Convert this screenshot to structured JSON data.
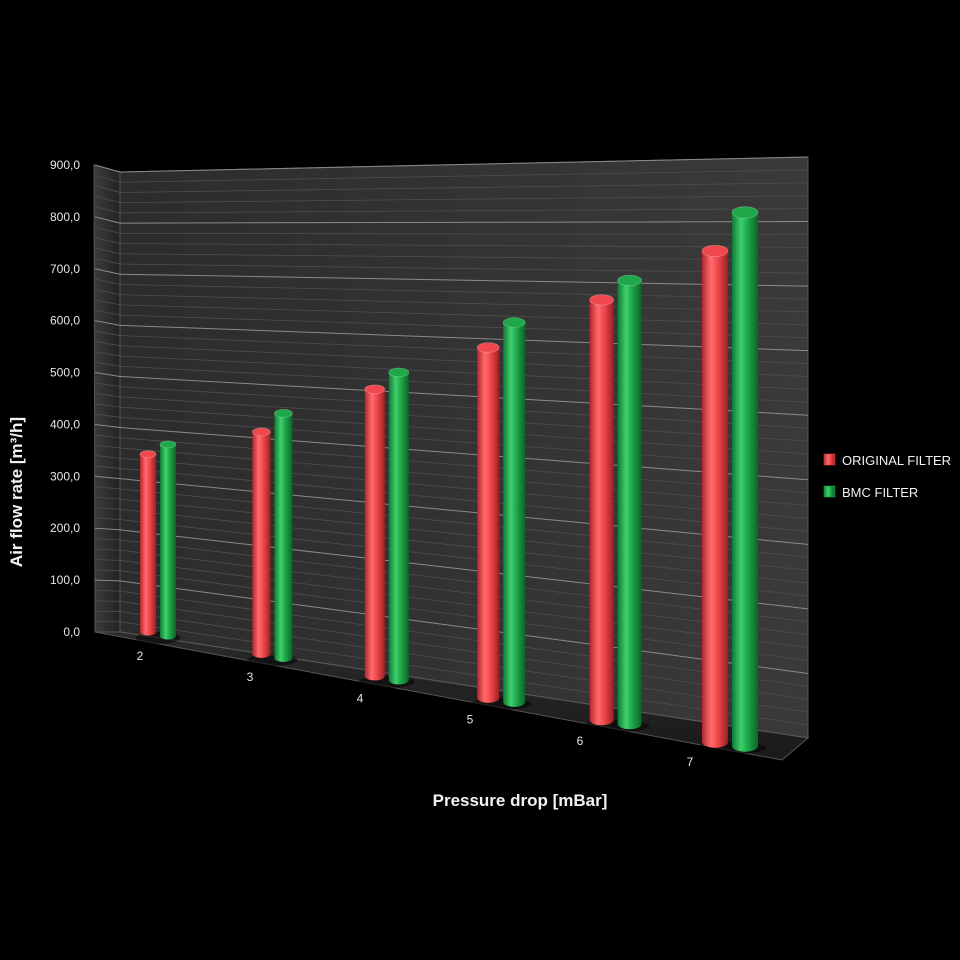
{
  "chart_data": {
    "type": "bar",
    "xlabel": "Pressure drop [mBar]",
    "ylabel": "Air flow rate [m³/h]",
    "categories": [
      "2",
      "3",
      "4",
      "5",
      "6",
      "7"
    ],
    "series": [
      {
        "name": "ORIGINAL FILTER",
        "color": "#f0484c",
        "values": [
          348,
          413,
          508,
          593,
          680,
          762
        ]
      },
      {
        "name": "BMC FILTER",
        "color": "#1ea84a",
        "values": [
          375,
          455,
          545,
          642,
          718,
          828
        ]
      }
    ],
    "yticks": [
      "0,0",
      "100,0",
      "200,0",
      "300,0",
      "400,0",
      "500,0",
      "600,0",
      "700,0",
      "800,0",
      "900,0"
    ],
    "ylim": [
      0,
      900
    ],
    "grid": true,
    "legend_position": "right"
  }
}
